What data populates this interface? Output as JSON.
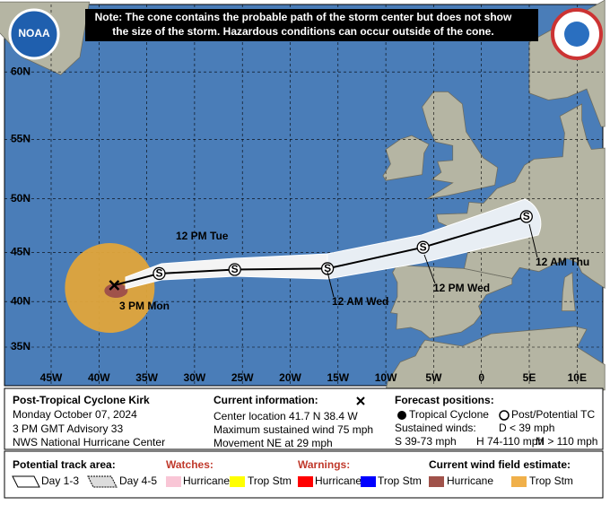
{
  "note": [
    "Note: The cone contains the probable path of the storm center but does not show",
    "the size of the storm. Hazardous conditions can occur outside of the cone."
  ],
  "logos": {
    "noaa": "NOAA"
  },
  "map": {
    "lat_labels": [
      {
        "value": 60,
        "label": "60N"
      },
      {
        "value": 55,
        "label": "55N"
      },
      {
        "value": 50,
        "label": "50N"
      },
      {
        "value": 45,
        "label": "45N"
      },
      {
        "value": 40,
        "label": "40N"
      },
      {
        "value": 35,
        "label": "35N"
      }
    ],
    "lon_labels": [
      {
        "value": -45,
        "label": "45W"
      },
      {
        "value": -40,
        "label": "40W"
      },
      {
        "value": -35,
        "label": "35W"
      },
      {
        "value": -30,
        "label": "30W"
      },
      {
        "value": -25,
        "label": "25W"
      },
      {
        "value": -20,
        "label": "20W"
      },
      {
        "value": -15,
        "label": "15W"
      },
      {
        "value": -10,
        "label": "10W"
      },
      {
        "value": -5,
        "label": "5W"
      },
      0,
      {
        "value": 5,
        "label": "5E"
      },
      {
        "value": 10,
        "label": "10E"
      }
    ],
    "point_symbol": "S",
    "track": [
      {
        "lat": 41.7,
        "lon": -38.4,
        "label": "3 PM Mon"
      },
      {
        "lat": 42.9,
        "lon": -33.7
      },
      {
        "lat": 43.3,
        "lon": -25.8,
        "label": "12 PM Tue"
      },
      {
        "lat": 43.4,
        "lon": -16.1,
        "label": "12 AM Wed"
      },
      {
        "lat": 45.5,
        "lon": -6.1,
        "label": "12 PM Wed"
      },
      {
        "lat": 48.4,
        "lon": 4.7,
        "label": "12 AM Thu"
      }
    ]
  },
  "info": {
    "storm": "Post-Tropical Cyclone Kirk",
    "date": "Monday October 07, 2024",
    "advisory": "3 PM GMT Advisory 33",
    "source": "NWS National Hurricane Center",
    "current_title": "Current information:",
    "current_lines": [
      "Center location 41.7 N 38.4 W",
      "Maximum sustained wind 75 mph",
      "Movement NE at 29 mph"
    ],
    "forecast_title": "Forecast positions:",
    "forecast_items": [
      "Tropical Cyclone",
      "Post/Potential TC"
    ],
    "winds_title": "Sustained winds:",
    "winds": [
      "D < 39 mph",
      "S 39-73 mph",
      "H 74-110 mph",
      "M > 110 mph"
    ]
  },
  "legend": {
    "track_title": "Potential track area:",
    "track_items": [
      "Day 1-3",
      "Day 4-5"
    ],
    "watches_title": "Watches:",
    "watches": [
      "Hurricane",
      "Trop Stm"
    ],
    "warnings_title": "Warnings:",
    "warnings": [
      "Hurricane",
      "Trop Stm"
    ],
    "wind_title": "Current wind field estimate:",
    "wind": [
      "Hurricane",
      "Trop Stm"
    ]
  }
}
